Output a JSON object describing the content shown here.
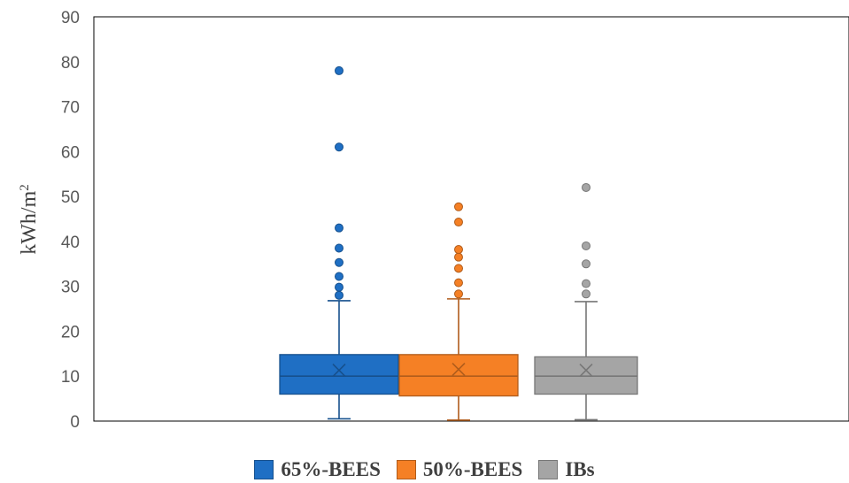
{
  "chart_data": {
    "type": "box",
    "ylabel": "kWh/m",
    "ylabel_sup": "2",
    "ylim": [
      0,
      90
    ],
    "yticks": [
      "0",
      "10",
      "20",
      "30",
      "40",
      "50",
      "60",
      "70",
      "80",
      "90"
    ],
    "gridlines": false,
    "legend_position": "bottom",
    "series": [
      {
        "name": "65%-BEES",
        "color": "#1f6fc4",
        "min": 0.5,
        "q1": 6,
        "median": 10,
        "q3": 14.8,
        "max": 26.8,
        "mean": 11.3,
        "outliers": [
          28,
          29.8,
          32.2,
          35.3,
          38.5,
          43,
          61,
          78
        ]
      },
      {
        "name": "50%-BEES",
        "color": "#f58025",
        "min": 0.2,
        "q1": 5.6,
        "median": 10,
        "q3": 14.8,
        "max": 27.2,
        "mean": 11.5,
        "outliers": [
          28.3,
          30.8,
          34,
          36.5,
          38.2,
          44.3,
          47.7
        ]
      },
      {
        "name": "IBs",
        "color": "#a5a5a5",
        "min": 0.3,
        "q1": 6,
        "median": 10,
        "q3": 14.3,
        "max": 26.6,
        "mean": 11.3,
        "outliers": [
          28.3,
          30.6,
          35,
          39,
          52
        ]
      }
    ]
  }
}
